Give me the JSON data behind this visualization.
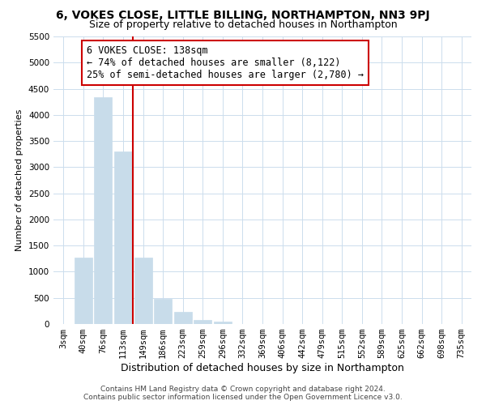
{
  "title": "6, VOKES CLOSE, LITTLE BILLING, NORTHAMPTON, NN3 9PJ",
  "subtitle": "Size of property relative to detached houses in Northampton",
  "xlabel": "Distribution of detached houses by size in Northampton",
  "ylabel": "Number of detached properties",
  "bar_labels": [
    "3sqm",
    "40sqm",
    "76sqm",
    "113sqm",
    "149sqm",
    "186sqm",
    "223sqm",
    "259sqm",
    "296sqm",
    "332sqm",
    "369sqm",
    "406sqm",
    "442sqm",
    "479sqm",
    "515sqm",
    "552sqm",
    "589sqm",
    "625sqm",
    "662sqm",
    "698sqm",
    "735sqm"
  ],
  "bar_values": [
    0,
    1270,
    4340,
    3300,
    1270,
    480,
    230,
    75,
    40,
    0,
    0,
    0,
    0,
    0,
    0,
    0,
    0,
    0,
    0,
    0,
    0
  ],
  "bar_color": "#c8dcea",
  "bar_edge_color": "#c8dcea",
  "vline_color": "#cc0000",
  "annotation_title": "6 VOKES CLOSE: 138sqm",
  "annotation_line1": "← 74% of detached houses are smaller (8,122)",
  "annotation_line2": "25% of semi-detached houses are larger (2,780) →",
  "annotation_box_color": "#ffffff",
  "annotation_box_edge": "#cc0000",
  "ylim": [
    0,
    5500
  ],
  "yticks": [
    0,
    500,
    1000,
    1500,
    2000,
    2500,
    3000,
    3500,
    4000,
    4500,
    5000,
    5500
  ],
  "footer1": "Contains HM Land Registry data © Crown copyright and database right 2024.",
  "footer2": "Contains public sector information licensed under the Open Government Licence v3.0.",
  "title_fontsize": 10,
  "subtitle_fontsize": 9,
  "xlabel_fontsize": 9,
  "ylabel_fontsize": 8,
  "tick_fontsize": 7.5,
  "footer_fontsize": 6.5,
  "annotation_fontsize": 8.5,
  "background_color": "#ffffff",
  "grid_color": "#ccdded"
}
